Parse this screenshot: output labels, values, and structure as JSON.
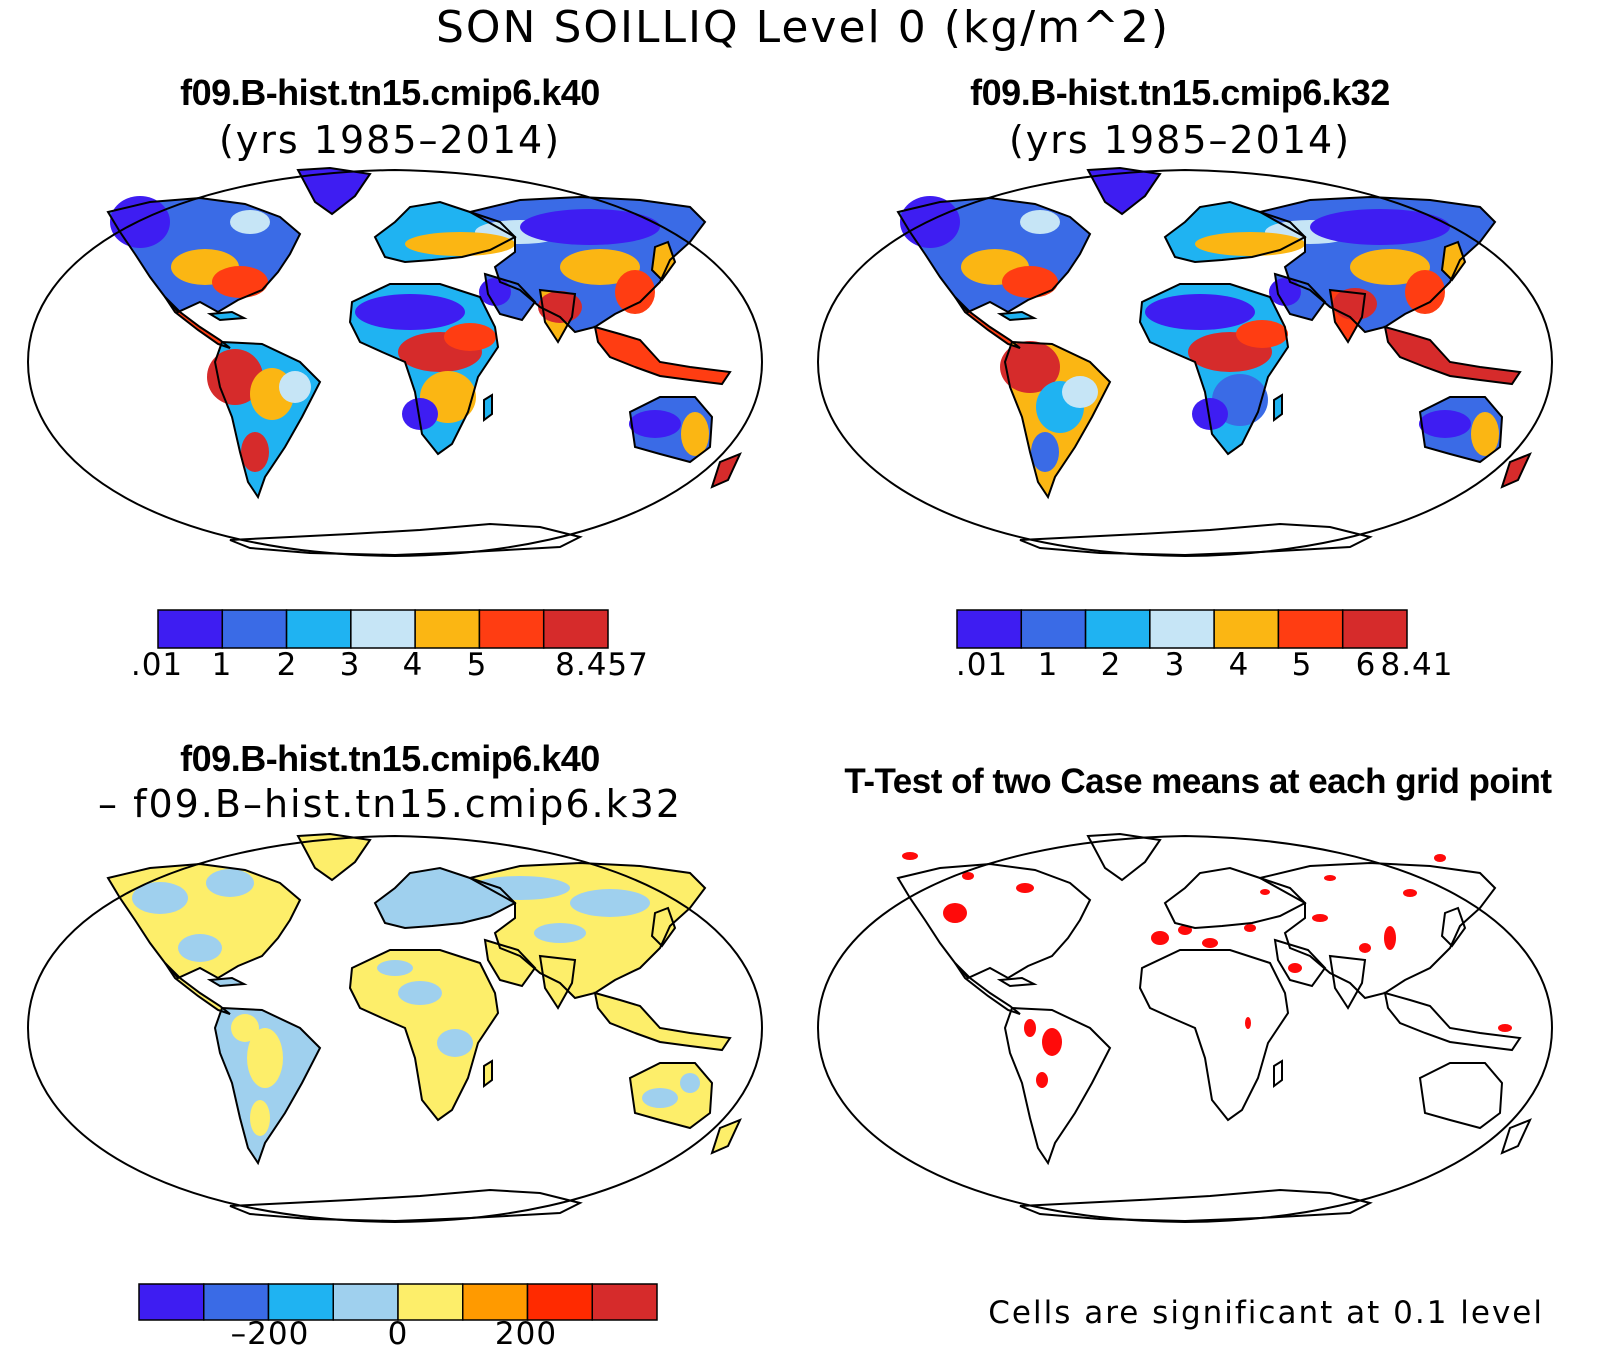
{
  "figure": {
    "title": "SON SOILLIQ Level 0 (kg/m^2)"
  },
  "panels": [
    {
      "title": "f09.B-hist.tn15.cmip6.k40",
      "subtitle": "(yrs 1985–2014)",
      "colorbar": {
        "colors": [
          "#3e1df2",
          "#3a6be6",
          "#1fb3f2",
          "#c6e5f6",
          "#fbb613",
          "#ff3d12",
          "#d62b2b"
        ],
        "labels": [
          ".01",
          "1",
          "2",
          "3",
          "4",
          "5",
          "8.457"
        ]
      }
    },
    {
      "title": "f09.B-hist.tn15.cmip6.k32",
      "subtitle": "(yrs 1985–2014)",
      "colorbar": {
        "colors": [
          "#3e1df2",
          "#3a6be6",
          "#1fb3f2",
          "#c6e5f6",
          "#fbb613",
          "#ff3d12",
          "#d62b2b"
        ],
        "labels": [
          ".01",
          "1",
          "2",
          "3",
          "4",
          "5",
          "6",
          "8.41"
        ]
      }
    },
    {
      "title": "f09.B-hist.tn15.cmip6.k40",
      "subtitle": "– f09.B–hist.tn15.cmip6.k32",
      "colorbar": {
        "colors": [
          "#3e1df2",
          "#3a6be6",
          "#1fb3f2",
          "#9fd0ee",
          "#fdee6a",
          "#ff9a00",
          "#ff2a00",
          "#d62b2b"
        ],
        "labels": [
          "–200",
          "0",
          "200"
        ]
      }
    },
    {
      "title": "T-Test of two Case means at each grid point",
      "footnote": "Cells are significant at 0.1 level"
    }
  ]
}
